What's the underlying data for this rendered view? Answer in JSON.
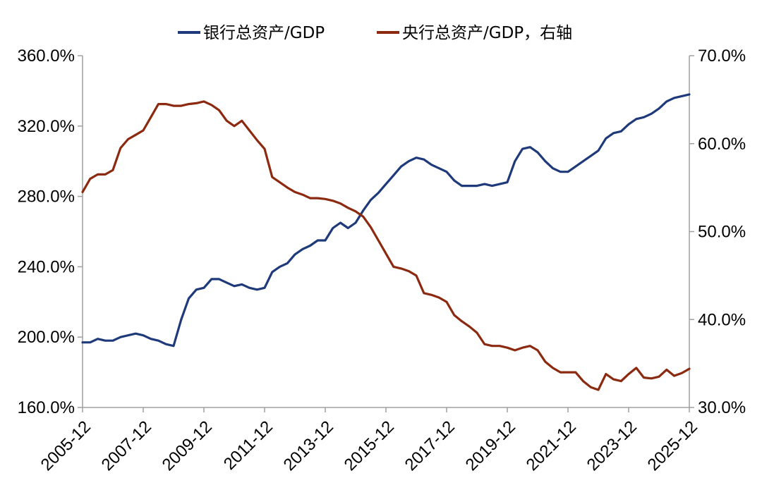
{
  "chart_data": {
    "type": "line",
    "title": "",
    "xlabel": "",
    "ylabel": "",
    "x_ticks": [
      "2005-12",
      "2007-12",
      "2009-12",
      "2011-12",
      "2013-12",
      "2015-12",
      "2017-12",
      "2019-12",
      "2021-12",
      "2023-12",
      "2025-12"
    ],
    "y_left_ticks": [
      "360.0%",
      "320.0%",
      "280.0%",
      "240.0%",
      "200.0%",
      "160.0%"
    ],
    "y_right_ticks": [
      "70.0%",
      "60.0%",
      "50.0%",
      "40.0%",
      "30.0%"
    ],
    "y_left_range": [
      160,
      360
    ],
    "y_right_range": [
      30,
      70
    ],
    "x_range": [
      "2005-12",
      "2025-12"
    ],
    "legend_position": "top",
    "series": [
      {
        "name": "银行总资产/GDP",
        "axis": "left",
        "color": "#1f3a7a",
        "points": [
          [
            "2005-12",
            197
          ],
          [
            "2006-03",
            197
          ],
          [
            "2006-06",
            199
          ],
          [
            "2006-09",
            198
          ],
          [
            "2006-12",
            198
          ],
          [
            "2007-03",
            200
          ],
          [
            "2007-06",
            201
          ],
          [
            "2007-09",
            202
          ],
          [
            "2007-12",
            201
          ],
          [
            "2008-03",
            199
          ],
          [
            "2008-06",
            198
          ],
          [
            "2008-09",
            196
          ],
          [
            "2008-12",
            195
          ],
          [
            "2009-03",
            210
          ],
          [
            "2009-06",
            222
          ],
          [
            "2009-09",
            227
          ],
          [
            "2009-12",
            228
          ],
          [
            "2010-03",
            233
          ],
          [
            "2010-06",
            233
          ],
          [
            "2010-09",
            231
          ],
          [
            "2010-12",
            229
          ],
          [
            "2011-03",
            230
          ],
          [
            "2011-06",
            228
          ],
          [
            "2011-09",
            227
          ],
          [
            "2011-12",
            228
          ],
          [
            "2012-03",
            237
          ],
          [
            "2012-06",
            240
          ],
          [
            "2012-09",
            242
          ],
          [
            "2012-12",
            247
          ],
          [
            "2013-03",
            250
          ],
          [
            "2013-06",
            252
          ],
          [
            "2013-09",
            255
          ],
          [
            "2013-12",
            255
          ],
          [
            "2014-03",
            262
          ],
          [
            "2014-06",
            265
          ],
          [
            "2014-09",
            262
          ],
          [
            "2014-12",
            265
          ],
          [
            "2015-03",
            272
          ],
          [
            "2015-06",
            278
          ],
          [
            "2015-09",
            282
          ],
          [
            "2015-12",
            287
          ],
          [
            "2016-03",
            292
          ],
          [
            "2016-06",
            297
          ],
          [
            "2016-09",
            300
          ],
          [
            "2016-12",
            302
          ],
          [
            "2017-03",
            301
          ],
          [
            "2017-06",
            298
          ],
          [
            "2017-09",
            296
          ],
          [
            "2017-12",
            294
          ],
          [
            "2018-03",
            289
          ],
          [
            "2018-06",
            286
          ],
          [
            "2018-09",
            286
          ],
          [
            "2018-12",
            286
          ],
          [
            "2019-03",
            287
          ],
          [
            "2019-06",
            286
          ],
          [
            "2019-09",
            287
          ],
          [
            "2019-12",
            288
          ],
          [
            "2020-03",
            300
          ],
          [
            "2020-06",
            307
          ],
          [
            "2020-09",
            308
          ],
          [
            "2020-12",
            305
          ],
          [
            "2021-03",
            300
          ],
          [
            "2021-06",
            296
          ],
          [
            "2021-09",
            294
          ],
          [
            "2021-12",
            294
          ],
          [
            "2022-03",
            297
          ],
          [
            "2022-06",
            300
          ],
          [
            "2022-09",
            303
          ],
          [
            "2022-12",
            306
          ],
          [
            "2023-03",
            313
          ],
          [
            "2023-06",
            316
          ],
          [
            "2023-09",
            317
          ],
          [
            "2023-12",
            321
          ],
          [
            "2024-03",
            324
          ],
          [
            "2024-06",
            325
          ],
          [
            "2024-09",
            327
          ],
          [
            "2024-12",
            330
          ],
          [
            "2025-03",
            334
          ],
          [
            "2025-06",
            336
          ],
          [
            "2025-09",
            337
          ],
          [
            "2025-12",
            338
          ]
        ]
      },
      {
        "name": "央行总资产/GDP，右轴",
        "axis": "right",
        "color": "#8b2a10",
        "points": [
          [
            "2005-12",
            54.5
          ],
          [
            "2006-03",
            56.0
          ],
          [
            "2006-06",
            56.5
          ],
          [
            "2006-09",
            56.5
          ],
          [
            "2006-12",
            57.0
          ],
          [
            "2007-03",
            59.5
          ],
          [
            "2007-06",
            60.5
          ],
          [
            "2007-09",
            61.0
          ],
          [
            "2007-12",
            61.5
          ],
          [
            "2008-03",
            63.0
          ],
          [
            "2008-06",
            64.5
          ],
          [
            "2008-09",
            64.5
          ],
          [
            "2008-12",
            64.3
          ],
          [
            "2009-03",
            64.3
          ],
          [
            "2009-06",
            64.5
          ],
          [
            "2009-09",
            64.6
          ],
          [
            "2009-12",
            64.8
          ],
          [
            "2010-03",
            64.4
          ],
          [
            "2010-06",
            63.8
          ],
          [
            "2010-09",
            62.6
          ],
          [
            "2010-12",
            62.0
          ],
          [
            "2011-03",
            62.6
          ],
          [
            "2011-06",
            61.5
          ],
          [
            "2011-09",
            60.4
          ],
          [
            "2011-12",
            59.4
          ],
          [
            "2012-03",
            56.2
          ],
          [
            "2012-06",
            55.6
          ],
          [
            "2012-09",
            55.0
          ],
          [
            "2012-12",
            54.5
          ],
          [
            "2013-03",
            54.2
          ],
          [
            "2013-06",
            53.8
          ],
          [
            "2013-09",
            53.8
          ],
          [
            "2013-12",
            53.7
          ],
          [
            "2014-03",
            53.5
          ],
          [
            "2014-06",
            53.2
          ],
          [
            "2014-09",
            52.7
          ],
          [
            "2014-12",
            52.3
          ],
          [
            "2015-03",
            51.7
          ],
          [
            "2015-06",
            50.5
          ],
          [
            "2015-09",
            49.0
          ],
          [
            "2015-12",
            47.5
          ],
          [
            "2016-03",
            46.0
          ],
          [
            "2016-06",
            45.8
          ],
          [
            "2016-09",
            45.5
          ],
          [
            "2016-12",
            45.0
          ],
          [
            "2017-03",
            43.0
          ],
          [
            "2017-06",
            42.8
          ],
          [
            "2017-09",
            42.5
          ],
          [
            "2017-12",
            42.0
          ],
          [
            "2018-03",
            40.5
          ],
          [
            "2018-06",
            39.8
          ],
          [
            "2018-09",
            39.2
          ],
          [
            "2018-12",
            38.5
          ],
          [
            "2019-03",
            37.2
          ],
          [
            "2019-06",
            37.0
          ],
          [
            "2019-09",
            37.0
          ],
          [
            "2019-12",
            36.8
          ],
          [
            "2020-03",
            36.5
          ],
          [
            "2020-06",
            36.8
          ],
          [
            "2020-09",
            37.0
          ],
          [
            "2020-12",
            36.5
          ],
          [
            "2021-03",
            35.2
          ],
          [
            "2021-06",
            34.5
          ],
          [
            "2021-09",
            34.0
          ],
          [
            "2021-12",
            34.0
          ],
          [
            "2022-03",
            34.0
          ],
          [
            "2022-06",
            33.0
          ],
          [
            "2022-09",
            32.3
          ],
          [
            "2022-12",
            32.0
          ],
          [
            "2023-03",
            33.8
          ],
          [
            "2023-06",
            33.2
          ],
          [
            "2023-09",
            33.0
          ],
          [
            "2023-12",
            33.8
          ],
          [
            "2024-03",
            34.5
          ],
          [
            "2024-06",
            33.4
          ],
          [
            "2024-09",
            33.3
          ],
          [
            "2024-12",
            33.5
          ],
          [
            "2025-03",
            34.3
          ],
          [
            "2025-06",
            33.6
          ],
          [
            "2025-09",
            33.9
          ],
          [
            "2025-12",
            34.4
          ]
        ]
      }
    ]
  }
}
